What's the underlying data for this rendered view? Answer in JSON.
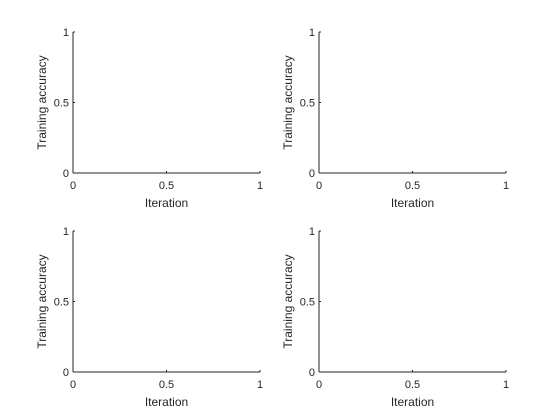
{
  "figure": {
    "background": "#ffffff",
    "axis_color": "#262626"
  },
  "chart_data": [
    {
      "type": "line",
      "panel": "top-left",
      "series": [],
      "xlabel": "Iteration",
      "ylabel": "Training accuracy",
      "xlim": [
        0,
        1
      ],
      "ylim": [
        0,
        1
      ],
      "xticks": [
        0,
        0.5,
        1
      ],
      "yticks": [
        0,
        0.5,
        1
      ],
      "xtick_labels": [
        "0",
        "0.5",
        "1"
      ],
      "ytick_labels": [
        "0",
        "0.5",
        "1"
      ],
      "grid": false
    },
    {
      "type": "line",
      "panel": "top-right",
      "series": [],
      "xlabel": "Iteration",
      "ylabel": "Training accuracy",
      "xlim": [
        0,
        1
      ],
      "ylim": [
        0,
        1
      ],
      "xticks": [
        0,
        0.5,
        1
      ],
      "yticks": [
        0,
        0.5,
        1
      ],
      "xtick_labels": [
        "0",
        "0.5",
        "1"
      ],
      "ytick_labels": [
        "0",
        "0.5",
        "1"
      ],
      "grid": false
    },
    {
      "type": "line",
      "panel": "bottom-left",
      "series": [],
      "xlabel": "Iteration",
      "ylabel": "Training accuracy",
      "xlim": [
        0,
        1
      ],
      "ylim": [
        0,
        1
      ],
      "xticks": [
        0,
        0.5,
        1
      ],
      "yticks": [
        0,
        0.5,
        1
      ],
      "xtick_labels": [
        "0",
        "0.5",
        "1"
      ],
      "ytick_labels": [
        "0",
        "0.5",
        "1"
      ],
      "grid": false
    },
    {
      "type": "line",
      "panel": "bottom-right",
      "series": [],
      "xlabel": "Iteration",
      "ylabel": "Training accuracy",
      "xlim": [
        0,
        1
      ],
      "ylim": [
        0,
        1
      ],
      "xticks": [
        0,
        0.5,
        1
      ],
      "yticks": [
        0,
        0.5,
        1
      ],
      "xtick_labels": [
        "0",
        "0.5",
        "1"
      ],
      "ytick_labels": [
        "0",
        "0.5",
        "1"
      ],
      "grid": false
    }
  ]
}
